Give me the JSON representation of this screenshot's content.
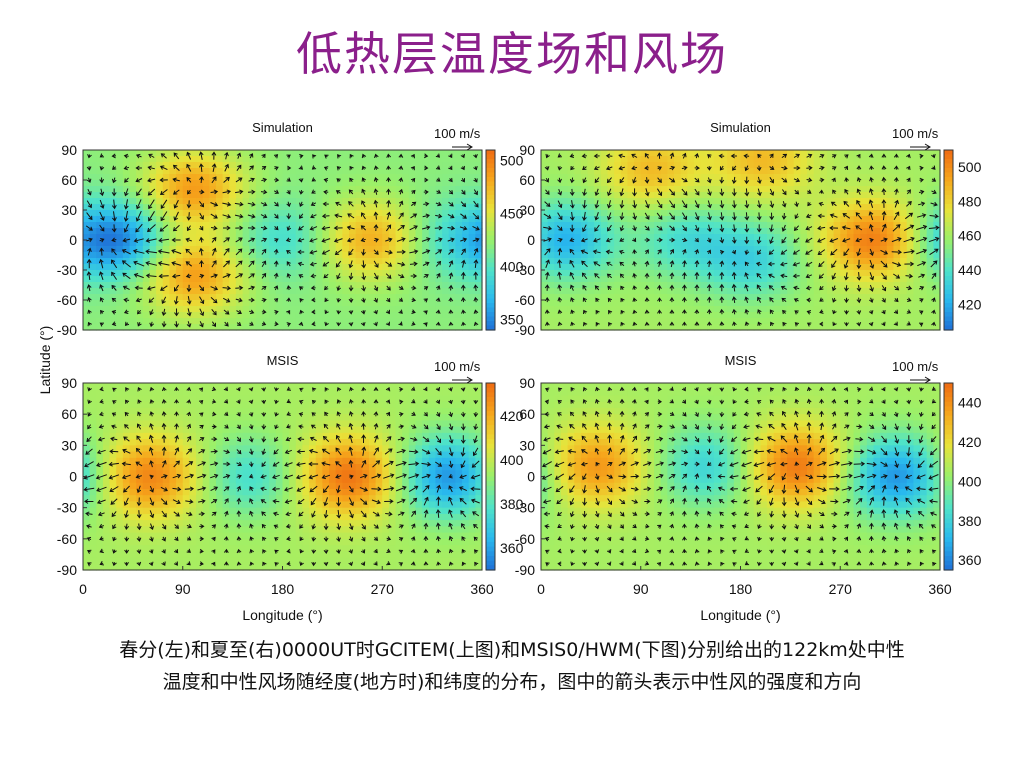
{
  "slide": {
    "title": "低热层温度场和风场",
    "caption_line1": "春分(左)和夏至(右)0000UT时GCITEM(上图)和MSIS0/HWM(下图)分别给出的122km处中性",
    "caption_line2": "温度和中性风场随经度(地方时)和纬度的分布，图中的箭头表示中性风的强度和方向"
  },
  "shared_axes": {
    "ylabel": "Latitude (°)",
    "xlabel": "Longitude (°)",
    "xticks": [
      0,
      90,
      180,
      270,
      360
    ],
    "yticks": [
      90,
      60,
      30,
      0,
      -30,
      -60,
      -90
    ],
    "xlim": [
      0,
      360
    ],
    "ylim": [
      -90,
      90
    ]
  },
  "colormap": [
    "#1f6fd6",
    "#29b9ee",
    "#4fe3c8",
    "#9af06a",
    "#e8e33a",
    "#f6a71c",
    "#ee6a12"
  ],
  "arrow_color": "#111111",
  "chart_data": [
    {
      "type": "heatmap",
      "panel": "top-left",
      "title": "Simulation",
      "scale_label": "100 m/s",
      "colorbar_ticks": [
        350,
        400,
        450,
        500
      ],
      "colorbar_range": [
        340,
        510
      ],
      "field": {
        "base": 420,
        "amp": 75,
        "centers": [
          {
            "lon": 30,
            "lat": 0,
            "sign": -1,
            "w": 1.0
          },
          {
            "lon": 100,
            "lat": 50,
            "sign": 1,
            "w": 0.9
          },
          {
            "lon": 100,
            "lat": -35,
            "sign": 1,
            "w": 0.9
          },
          {
            "lon": 260,
            "lat": 0,
            "sign": 1,
            "w": 0.8
          },
          {
            "lon": 180,
            "lat": 0,
            "sign": -1,
            "w": 0.4
          },
          {
            "lon": 330,
            "lat": 0,
            "sign": -1,
            "w": 0.35
          }
        ]
      }
    },
    {
      "type": "heatmap",
      "panel": "top-right",
      "title": "Simulation",
      "scale_label": "100 m/s",
      "colorbar_ticks": [
        420,
        440,
        460,
        480,
        500
      ],
      "colorbar_range": [
        405,
        510
      ],
      "field": {
        "base": 460,
        "amp": 45,
        "centers": [
          {
            "lon": 20,
            "lat": 0,
            "sign": -1,
            "w": 0.9
          },
          {
            "lon": 130,
            "lat": 0,
            "sign": -1,
            "w": 0.5
          },
          {
            "lon": 190,
            "lat": -20,
            "sign": -1,
            "w": 0.6
          },
          {
            "lon": 300,
            "lat": 0,
            "sign": 1,
            "w": 1.0
          },
          {
            "lon": 100,
            "lat": 70,
            "sign": 1,
            "w": 0.6
          },
          {
            "lon": 200,
            "lat": 80,
            "sign": 1,
            "w": 0.6
          }
        ]
      }
    },
    {
      "type": "heatmap",
      "panel": "bottom-left",
      "title": "MSIS",
      "scale_label": "100 m/s",
      "colorbar_ticks": [
        360,
        380,
        400,
        420
      ],
      "colorbar_range": [
        350,
        435
      ],
      "field": {
        "base": 395,
        "amp": 38,
        "centers": [
          {
            "lon": 60,
            "lat": 0,
            "sign": 1,
            "w": 0.9
          },
          {
            "lon": 150,
            "lat": 0,
            "sign": -1,
            "w": 0.5
          },
          {
            "lon": 240,
            "lat": 0,
            "sign": 1,
            "w": 1.0
          },
          {
            "lon": 330,
            "lat": 0,
            "sign": -1,
            "w": 1.0
          }
        ]
      }
    },
    {
      "type": "heatmap",
      "panel": "bottom-right",
      "title": "MSIS",
      "scale_label": "100 m/s",
      "colorbar_ticks": [
        360,
        380,
        400,
        420,
        440
      ],
      "colorbar_range": [
        355,
        450
      ],
      "field": {
        "base": 405,
        "amp": 42,
        "centers": [
          {
            "lon": 50,
            "lat": 10,
            "sign": 1,
            "w": 0.8
          },
          {
            "lon": 150,
            "lat": 10,
            "sign": -1,
            "w": 0.6
          },
          {
            "lon": 230,
            "lat": 10,
            "sign": 1,
            "w": 1.0
          },
          {
            "lon": 320,
            "lat": 0,
            "sign": -1,
            "w": 1.0
          }
        ]
      }
    }
  ]
}
